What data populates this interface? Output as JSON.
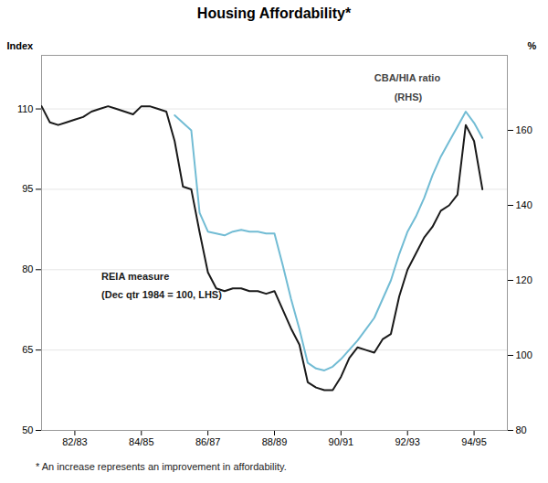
{
  "chart_data": {
    "type": "line",
    "title": "Housing Affordability*",
    "footnote": "* An increase represents an improvement in affordability.",
    "ylabel": "Index",
    "y2label": "%",
    "xlim": [
      81.0,
      95.0
    ],
    "xticks": [
      {
        "value": 82.0,
        "label": "82/83"
      },
      {
        "value": 84.0,
        "label": "84/85"
      },
      {
        "value": 86.0,
        "label": "86/87"
      },
      {
        "value": 88.0,
        "label": "88/89"
      },
      {
        "value": 90.0,
        "label": "90/91"
      },
      {
        "value": 92.0,
        "label": "92/93"
      },
      {
        "value": 94.0,
        "label": "94/95"
      }
    ],
    "ylim": [
      50,
      120
    ],
    "yticks": [
      50,
      65,
      80,
      95,
      110
    ],
    "y2lim": [
      80,
      180
    ],
    "y2ticks": [
      80,
      100,
      120,
      140,
      160
    ],
    "grid": true,
    "series": [
      {
        "name": "CBA/HIA ratio",
        "axis": "y2",
        "color": "#72bcd4",
        "x": [
          85.0,
          85.25,
          85.5,
          85.75,
          86.0,
          86.25,
          86.5,
          86.75,
          87.0,
          87.25,
          87.5,
          87.75,
          88.0,
          88.25,
          88.5,
          88.75,
          89.0,
          89.25,
          89.5,
          89.75,
          90.0,
          90.25,
          90.5,
          90.75,
          91.0,
          91.25,
          91.5,
          91.75,
          92.0,
          92.25,
          92.5,
          92.75,
          93.0,
          93.25,
          93.5,
          93.75,
          94.0,
          94.25
        ],
        "values": [
          164.0,
          162.0,
          160.0,
          138.0,
          133.0,
          132.5,
          132.0,
          133.0,
          133.5,
          133.0,
          133.0,
          132.5,
          132.5,
          124.0,
          115.0,
          107.0,
          98.0,
          96.5,
          96.0,
          97.0,
          99.0,
          101.5,
          104.0,
          107.0,
          110.0,
          115.0,
          120.0,
          127.0,
          133.0,
          137.0,
          142.0,
          148.0,
          153.0,
          157.0,
          161.0,
          165.0,
          162.0,
          158.0
        ]
      },
      {
        "name": "REIA measure",
        "color": "#1a1a1a",
        "x": [
          81.0,
          81.25,
          81.5,
          81.75,
          82.0,
          82.25,
          82.5,
          82.75,
          83.0,
          83.25,
          83.5,
          83.75,
          84.0,
          84.25,
          84.5,
          84.75,
          85.0,
          85.25,
          85.5,
          85.75,
          86.0,
          86.25,
          86.5,
          86.75,
          87.0,
          87.25,
          87.5,
          87.75,
          88.0,
          88.25,
          88.5,
          88.75,
          89.0,
          89.25,
          89.5,
          89.75,
          90.0,
          90.25,
          90.5,
          90.75,
          91.0,
          91.25,
          91.5,
          91.75,
          92.0,
          92.25,
          92.5,
          92.75,
          93.0,
          93.25,
          93.5,
          93.75,
          94.0,
          94.25
        ],
        "values": [
          110.5,
          107.5,
          107.0,
          107.5,
          108.0,
          108.5,
          109.5,
          110.0,
          110.5,
          110.0,
          109.5,
          109.0,
          110.5,
          110.5,
          110.0,
          109.5,
          104.0,
          95.5,
          95.0,
          87.0,
          79.5,
          76.5,
          76.0,
          76.5,
          76.5,
          76.0,
          76.0,
          75.5,
          76.0,
          72.5,
          69.0,
          66.0,
          59.0,
          58.0,
          57.5,
          57.5,
          60.0,
          63.5,
          65.5,
          65.0,
          64.5,
          67.0,
          68.0,
          75.0,
          80.0,
          83.0,
          86.0,
          88.0,
          91.0,
          92.0,
          94.0,
          107.0,
          104.0,
          95.0
        ]
      }
    ],
    "annotations": [
      {
        "text": "REIA measure",
        "x": 82.8,
        "y": 79.5,
        "color": "#1a1a1a"
      },
      {
        "text": "(Dec qtr 1984 = 100, LHS)",
        "x": 82.8,
        "y": 76.0,
        "color": "#1a1a1a"
      },
      {
        "text": "CBA/HIA ratio",
        "x": 91.0,
        "y": 116.5,
        "color": "#444444"
      },
      {
        "text": "(RHS)",
        "x": 91.6,
        "y": 112.8,
        "color": "#444444"
      }
    ]
  }
}
